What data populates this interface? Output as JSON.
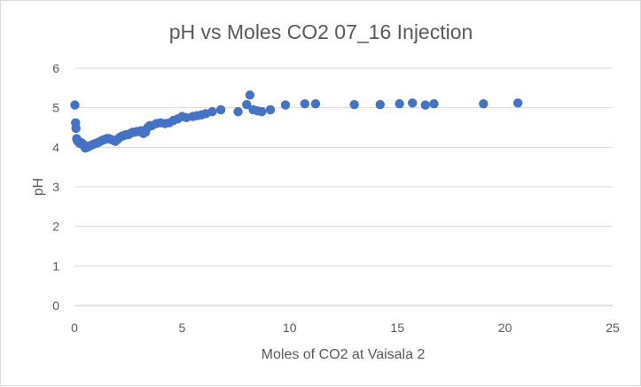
{
  "chart_data": {
    "type": "scatter",
    "title": "pH vs Moles CO2 07_16 Injection",
    "xlabel": "Moles of CO2 at Vaisala 2",
    "ylabel": "pH",
    "xlim": [
      0,
      25
    ],
    "ylim": [
      0,
      6
    ],
    "xticks": [
      0,
      5,
      10,
      15,
      20,
      25
    ],
    "yticks": [
      0,
      1,
      2,
      3,
      4,
      5,
      6
    ],
    "grid": "horizontal",
    "legend": "none",
    "marker_color": "#4472c4",
    "series": [
      {
        "x": [
          0.02,
          0.05,
          0.07,
          0.1,
          0.12,
          0.15,
          0.2,
          0.25,
          0.3,
          0.35,
          0.4,
          0.45,
          0.5,
          0.55,
          0.6,
          0.65,
          0.7,
          0.8,
          0.9,
          1.0,
          1.1,
          1.2,
          1.3,
          1.4,
          1.5,
          1.6,
          1.7,
          1.8,
          1.9,
          2.0,
          2.1,
          2.2,
          2.3,
          2.4,
          2.5,
          2.6,
          2.7,
          2.8,
          2.9,
          3.0,
          3.1,
          3.2,
          3.3,
          3.4,
          3.5,
          3.6,
          3.8,
          4.0,
          4.2,
          4.4,
          4.6,
          4.8,
          5.0,
          5.2,
          5.5,
          5.7,
          5.9,
          6.1,
          6.4,
          6.8,
          7.6,
          8.0,
          8.15,
          8.3,
          8.5,
          8.7,
          9.1,
          9.8,
          10.7,
          11.2,
          13.0,
          14.2,
          15.1,
          15.7,
          16.3,
          16.7,
          19.0,
          20.6
        ],
        "y": [
          5.07,
          4.62,
          4.48,
          4.22,
          4.2,
          4.15,
          4.13,
          4.1,
          4.12,
          4.1,
          4.08,
          4.03,
          3.98,
          4.0,
          4.0,
          4.02,
          4.03,
          4.06,
          4.08,
          4.1,
          4.12,
          4.15,
          4.18,
          4.2,
          4.22,
          4.22,
          4.2,
          4.18,
          4.15,
          4.2,
          4.25,
          4.28,
          4.3,
          4.32,
          4.32,
          4.35,
          4.38,
          4.38,
          4.4,
          4.4,
          4.42,
          4.35,
          4.38,
          4.5,
          4.55,
          4.55,
          4.6,
          4.62,
          4.6,
          4.62,
          4.68,
          4.72,
          4.78,
          4.75,
          4.78,
          4.8,
          4.82,
          4.85,
          4.9,
          4.95,
          4.9,
          5.08,
          5.32,
          4.95,
          4.92,
          4.9,
          4.95,
          5.07,
          5.1,
          5.1,
          5.08,
          5.08,
          5.1,
          5.12,
          5.07,
          5.1,
          5.1,
          5.12
        ]
      }
    ]
  }
}
